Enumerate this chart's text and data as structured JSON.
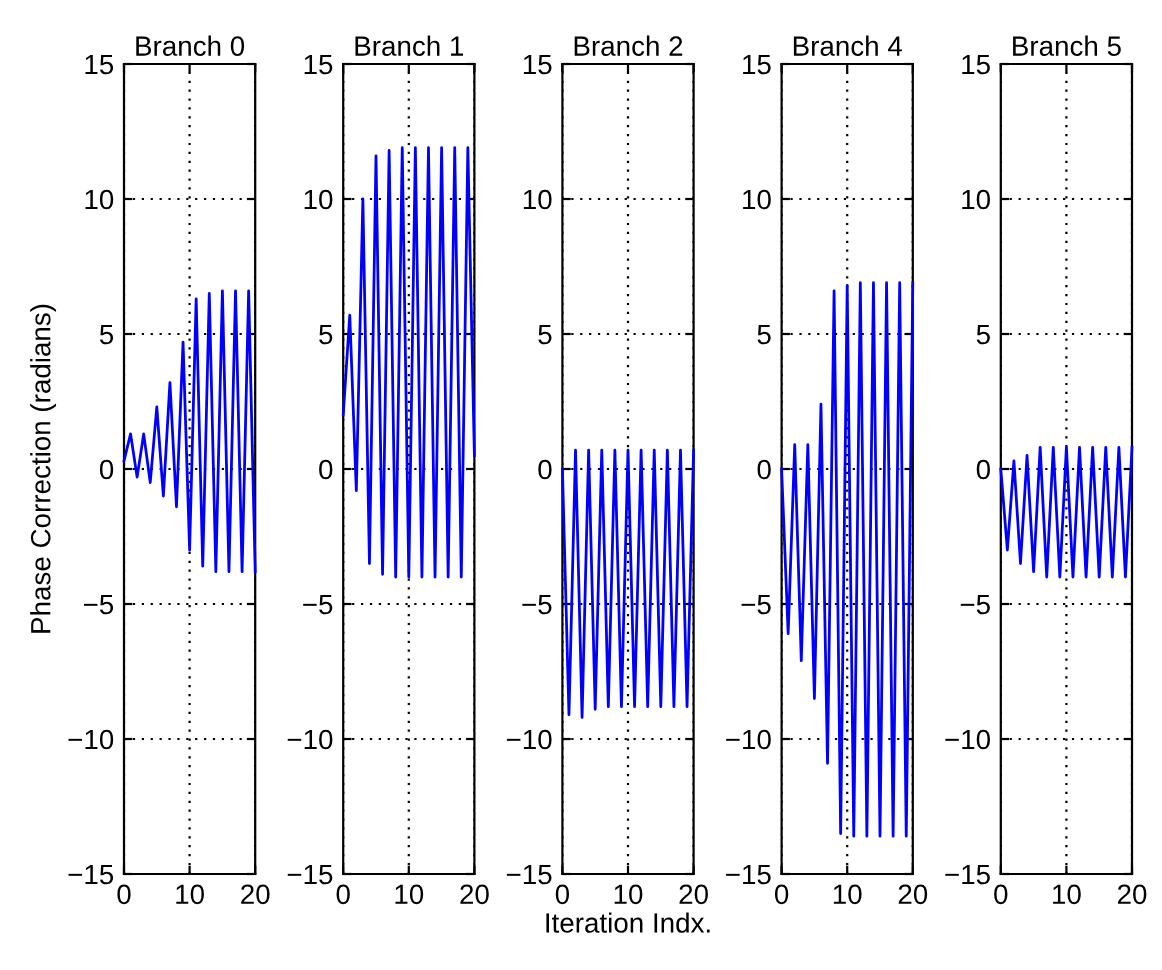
{
  "chart_data": [
    {
      "type": "line",
      "title": "Branch 0",
      "ylabel": "Phase Correction (radians)",
      "xlim": [
        0,
        20
      ],
      "ylim": [
        -15,
        15
      ],
      "xticks": [
        0,
        10,
        20
      ],
      "yticks": [
        -15,
        -10,
        -5,
        0,
        5,
        10,
        15
      ],
      "grid": true,
      "x": [
        0,
        1,
        2,
        3,
        4,
        5,
        6,
        7,
        8,
        9,
        10,
        11,
        12,
        13,
        14,
        15,
        16,
        17,
        18,
        19,
        20
      ],
      "series": [
        {
          "color": "#0000ff",
          "values": [
            0.3,
            1.3,
            -0.3,
            1.3,
            -0.5,
            2.3,
            -1.0,
            3.2,
            -1.4,
            4.7,
            -3.0,
            6.3,
            -3.6,
            6.5,
            -3.8,
            6.6,
            -3.8,
            6.6,
            -3.8,
            6.6,
            -3.8
          ]
        }
      ]
    },
    {
      "type": "line",
      "title": "Branch 1",
      "xlim": [
        0,
        20
      ],
      "ylim": [
        -15,
        15
      ],
      "xticks": [
        0,
        10,
        20
      ],
      "yticks": [
        -15,
        -10,
        -5,
        0,
        5,
        10,
        15
      ],
      "grid": true,
      "x": [
        0,
        1,
        2,
        3,
        4,
        5,
        6,
        7,
        8,
        9,
        10,
        11,
        12,
        13,
        14,
        15,
        16,
        17,
        18,
        19,
        20
      ],
      "series": [
        {
          "color": "#0000ff",
          "values": [
            2.0,
            5.7,
            -0.8,
            10.0,
            -3.5,
            11.6,
            -3.9,
            11.8,
            -4.0,
            11.9,
            -4.0,
            11.9,
            -4.0,
            11.9,
            -4.0,
            11.9,
            -4.0,
            11.9,
            -4.0,
            11.9,
            0.5
          ]
        }
      ]
    },
    {
      "type": "line",
      "title": "Branch 2",
      "xlabel": "Iteration Indx.",
      "xlim": [
        0,
        20
      ],
      "ylim": [
        -15,
        15
      ],
      "xticks": [
        0,
        10,
        20
      ],
      "yticks": [
        -15,
        -10,
        -5,
        0,
        5,
        10,
        15
      ],
      "grid": true,
      "x": [
        0,
        1,
        2,
        3,
        4,
        5,
        6,
        7,
        8,
        9,
        10,
        11,
        12,
        13,
        14,
        15,
        16,
        17,
        18,
        19,
        20
      ],
      "series": [
        {
          "color": "#0000ff",
          "values": [
            0,
            -9.1,
            0.7,
            -9.2,
            0.7,
            -8.9,
            0.7,
            -8.8,
            0.7,
            -8.8,
            0.7,
            -8.8,
            0.7,
            -8.8,
            0.7,
            -8.8,
            0.7,
            -8.8,
            0.7,
            -8.8,
            0.7
          ]
        }
      ]
    },
    {
      "type": "line",
      "title": "Branch 4",
      "xlim": [
        0,
        20
      ],
      "ylim": [
        -15,
        15
      ],
      "xticks": [
        0,
        10,
        20
      ],
      "yticks": [
        -15,
        -10,
        -5,
        0,
        5,
        10,
        15
      ],
      "grid": true,
      "x": [
        0,
        1,
        2,
        3,
        4,
        5,
        6,
        7,
        8,
        9,
        10,
        11,
        12,
        13,
        14,
        15,
        16,
        17,
        18,
        19,
        20
      ],
      "series": [
        {
          "color": "#0000ff",
          "values": [
            0,
            -6.1,
            0.9,
            -7.1,
            0.9,
            -8.5,
            2.4,
            -10.9,
            6.6,
            -13.5,
            6.8,
            -13.6,
            6.9,
            -13.6,
            6.9,
            -13.6,
            6.9,
            -13.6,
            6.9,
            -13.6,
            6.9
          ]
        }
      ]
    },
    {
      "type": "line",
      "title": "Branch 5",
      "xlim": [
        0,
        20
      ],
      "ylim": [
        -15,
        15
      ],
      "xticks": [
        0,
        10,
        20
      ],
      "yticks": [
        -15,
        -10,
        -5,
        0,
        5,
        10,
        15
      ],
      "grid": true,
      "x": [
        0,
        1,
        2,
        3,
        4,
        5,
        6,
        7,
        8,
        9,
        10,
        11,
        12,
        13,
        14,
        15,
        16,
        17,
        18,
        19,
        20
      ],
      "series": [
        {
          "color": "#0000ff",
          "values": [
            0,
            -3.0,
            0.3,
            -3.5,
            0.5,
            -3.8,
            0.8,
            -4.0,
            0.8,
            -4.0,
            0.8,
            -4.0,
            0.8,
            -4.0,
            0.8,
            -4.0,
            0.8,
            -4.0,
            0.8,
            -4.0,
            0.8
          ]
        }
      ]
    }
  ]
}
